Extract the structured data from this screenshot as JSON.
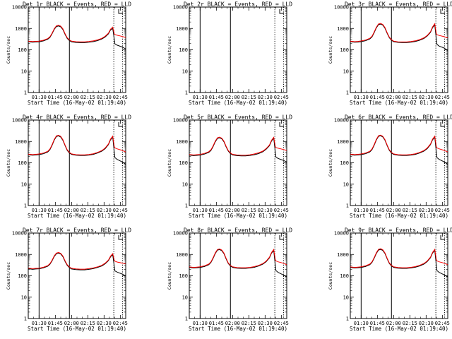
{
  "chart_data": {
    "type": "line",
    "layout": {
      "rows": 3,
      "cols": 3
    },
    "x_ticks": [
      "01:30",
      "01:45",
      "02:00",
      "02:15",
      "02:30",
      "02:45"
    ],
    "xlabel": "Start Time (16-May-02 01:19:40)",
    "ylabel": "Counts/sec",
    "y_scale": "log",
    "ylim": [
      1,
      10000
    ],
    "y_ticks": [
      "1",
      "10",
      "100",
      "1000",
      "10000"
    ],
    "xlim_minutes_after_start": [
      0,
      90
    ],
    "solid_markers_min": [
      10,
      38
    ],
    "dotted_markers_min": [
      79,
      87
    ],
    "legend_glyph": "step-bracket-top-right",
    "series_colors": {
      "events": "#000000",
      "lld": "#ff0000"
    },
    "panels": [
      {
        "title": "Det 1r BLACK = Events, RED = LLD",
        "x": [
          0,
          4,
          7,
          10,
          14,
          18,
          20,
          22,
          24,
          26,
          28,
          30,
          32,
          34,
          36,
          38,
          40,
          44,
          48,
          52,
          56,
          60,
          64,
          68,
          71,
          74,
          76,
          78,
          79.5,
          80,
          82,
          86,
          90
        ],
        "events": [
          240,
          225,
          232,
          235,
          260,
          310,
          380,
          560,
          900,
          1220,
          1300,
          1180,
          880,
          530,
          340,
          270,
          235,
          220,
          215,
          215,
          225,
          240,
          270,
          320,
          400,
          560,
          850,
          1000,
          300,
          190,
          165,
          140,
          110
        ],
        "lld": [
          255,
          245,
          250,
          255,
          280,
          335,
          410,
          600,
          970,
          1320,
          1400,
          1270,
          950,
          570,
          365,
          290,
          255,
          240,
          235,
          235,
          245,
          260,
          290,
          345,
          430,
          600,
          920,
          1150,
          560,
          520,
          480,
          430,
          380
        ]
      },
      {
        "title": "Det 2r BLACK = Events, RED = LLD",
        "x": [],
        "events": [],
        "lld": []
      },
      {
        "title": "Det 3r BLACK = Events, RED = LLD",
        "x": [
          0,
          4,
          7,
          10,
          14,
          18,
          20,
          22,
          24,
          26,
          28,
          30,
          32,
          34,
          36,
          38,
          40,
          44,
          48,
          52,
          56,
          60,
          64,
          68,
          71,
          74,
          76,
          78,
          79.5,
          80,
          82,
          86,
          90
        ],
        "events": [
          240,
          225,
          230,
          240,
          265,
          320,
          400,
          620,
          1050,
          1500,
          1600,
          1420,
          1020,
          600,
          370,
          280,
          240,
          222,
          218,
          218,
          228,
          245,
          280,
          340,
          440,
          650,
          1100,
          1450,
          300,
          180,
          150,
          125,
          95
        ],
        "lld": [
          255,
          240,
          248,
          258,
          285,
          345,
          430,
          670,
          1130,
          1620,
          1720,
          1530,
          1100,
          640,
          395,
          298,
          255,
          236,
          232,
          232,
          243,
          262,
          300,
          365,
          470,
          700,
          1190,
          1650,
          560,
          510,
          470,
          420,
          360
        ]
      },
      {
        "title": "Det 4r BLACK = Events, RED = LLD",
        "x": [
          0,
          4,
          7,
          10,
          14,
          18,
          20,
          22,
          24,
          26,
          28,
          30,
          32,
          34,
          36,
          38,
          40,
          44,
          48,
          52,
          56,
          60,
          64,
          68,
          71,
          74,
          76,
          78,
          79.5,
          80,
          82,
          86,
          90
        ],
        "events": [
          240,
          225,
          232,
          240,
          265,
          320,
          410,
          650,
          1150,
          1700,
          1820,
          1600,
          1120,
          640,
          380,
          285,
          245,
          225,
          220,
          220,
          230,
          248,
          285,
          350,
          460,
          700,
          1200,
          1550,
          300,
          175,
          145,
          115,
          85
        ],
        "lld": [
          255,
          242,
          250,
          258,
          285,
          345,
          440,
          700,
          1240,
          1830,
          1950,
          1720,
          1200,
          680,
          405,
          305,
          260,
          240,
          235,
          235,
          245,
          265,
          305,
          375,
          495,
          750,
          1290,
          1750,
          560,
          500,
          450,
          390,
          320
        ]
      },
      {
        "title": "Det 5r BLACK = Events, RED = LLD",
        "x": [
          0,
          4,
          7,
          10,
          14,
          18,
          20,
          22,
          24,
          26,
          28,
          30,
          32,
          34,
          36,
          38,
          40,
          44,
          48,
          52,
          56,
          60,
          64,
          68,
          71,
          74,
          76,
          78,
          79.5,
          80,
          82,
          86,
          90
        ],
        "events": [
          230,
          215,
          222,
          230,
          255,
          305,
          380,
          570,
          960,
          1380,
          1470,
          1320,
          960,
          560,
          350,
          270,
          232,
          215,
          210,
          210,
          220,
          238,
          270,
          330,
          430,
          630,
          1060,
          1400,
          300,
          185,
          160,
          135,
          110
        ],
        "lld": [
          245,
          232,
          240,
          248,
          275,
          330,
          410,
          615,
          1040,
          1490,
          1580,
          1420,
          1030,
          600,
          375,
          290,
          250,
          232,
          227,
          227,
          238,
          258,
          292,
          355,
          465,
          680,
          1140,
          1550,
          570,
          520,
          480,
          430,
          380
        ]
      },
      {
        "title": "Det 6r BLACK = Events, RED = LLD",
        "x": [
          0,
          4,
          7,
          10,
          14,
          18,
          20,
          22,
          24,
          26,
          28,
          30,
          32,
          34,
          36,
          38,
          40,
          44,
          48,
          52,
          56,
          60,
          64,
          68,
          71,
          74,
          76,
          78,
          79.5,
          80,
          82,
          86,
          90
        ],
        "events": [
          240,
          225,
          232,
          240,
          265,
          320,
          410,
          650,
          1150,
          1720,
          1850,
          1620,
          1130,
          645,
          382,
          286,
          245,
          225,
          220,
          220,
          230,
          248,
          285,
          350,
          460,
          700,
          1200,
          1550,
          300,
          175,
          145,
          115,
          85
        ],
        "lld": [
          255,
          242,
          250,
          258,
          285,
          345,
          440,
          700,
          1240,
          1850,
          1980,
          1740,
          1210,
          685,
          408,
          306,
          260,
          240,
          235,
          235,
          245,
          265,
          305,
          375,
          495,
          750,
          1290,
          1750,
          560,
          500,
          450,
          390,
          320
        ]
      },
      {
        "title": "Det 7r BLACK = Events, RED = LLD",
        "x": [
          0,
          4,
          7,
          10,
          14,
          18,
          20,
          22,
          24,
          26,
          28,
          30,
          32,
          34,
          36,
          38,
          40,
          44,
          48,
          52,
          56,
          60,
          64,
          68,
          71,
          74,
          76,
          78,
          79.5,
          80,
          82,
          86,
          90
        ],
        "events": [
          215,
          200,
          207,
          212,
          235,
          280,
          345,
          500,
          800,
          1080,
          1150,
          1040,
          780,
          470,
          305,
          240,
          208,
          195,
          190,
          190,
          200,
          215,
          245,
          290,
          365,
          510,
          770,
          980,
          260,
          170,
          150,
          125,
          100
        ],
        "lld": [
          230,
          215,
          222,
          228,
          252,
          300,
          370,
          535,
          860,
          1160,
          1240,
          1120,
          840,
          505,
          327,
          258,
          224,
          210,
          205,
          205,
          215,
          232,
          262,
          310,
          390,
          545,
          830,
          1080,
          530,
          480,
          440,
          400,
          360
        ]
      },
      {
        "title": "Det 8r BLACK = Events, RED = LLD",
        "x": [
          0,
          4,
          7,
          10,
          14,
          18,
          20,
          22,
          24,
          26,
          28,
          30,
          32,
          34,
          36,
          38,
          40,
          44,
          48,
          52,
          56,
          60,
          64,
          68,
          71,
          74,
          76,
          78,
          79.5,
          80,
          82,
          86,
          90
        ],
        "events": [
          245,
          232,
          238,
          246,
          272,
          330,
          420,
          650,
          1100,
          1580,
          1680,
          1500,
          1080,
          620,
          375,
          285,
          245,
          226,
          222,
          222,
          232,
          250,
          285,
          350,
          460,
          690,
          1160,
          1500,
          300,
          175,
          145,
          115,
          90
        ],
        "lld": [
          260,
          248,
          255,
          263,
          292,
          355,
          450,
          700,
          1185,
          1700,
          1800,
          1610,
          1160,
          665,
          400,
          305,
          262,
          242,
          238,
          238,
          248,
          268,
          306,
          375,
          492,
          740,
          1240,
          1700,
          560,
          500,
          450,
          400,
          330
        ]
      },
      {
        "title": "Det 9r BLACK = Events, RED = LLD",
        "x": [
          0,
          4,
          7,
          10,
          14,
          18,
          20,
          22,
          24,
          26,
          28,
          30,
          32,
          34,
          36,
          38,
          40,
          44,
          48,
          52,
          56,
          60,
          64,
          68,
          71,
          74,
          76,
          78,
          79.5,
          80,
          82,
          86,
          90
        ],
        "events": [
          245,
          232,
          238,
          246,
          272,
          330,
          420,
          650,
          1100,
          1600,
          1720,
          1530,
          1100,
          630,
          378,
          287,
          246,
          227,
          223,
          223,
          233,
          251,
          287,
          352,
          462,
          695,
          1170,
          1520,
          300,
          175,
          145,
          115,
          90
        ],
        "lld": [
          260,
          248,
          255,
          263,
          292,
          355,
          450,
          700,
          1185,
          1720,
          1850,
          1650,
          1180,
          675,
          405,
          308,
          263,
          243,
          239,
          239,
          249,
          269,
          308,
          378,
          495,
          745,
          1250,
          1720,
          560,
          500,
          450,
          400,
          330
        ]
      }
    ]
  }
}
